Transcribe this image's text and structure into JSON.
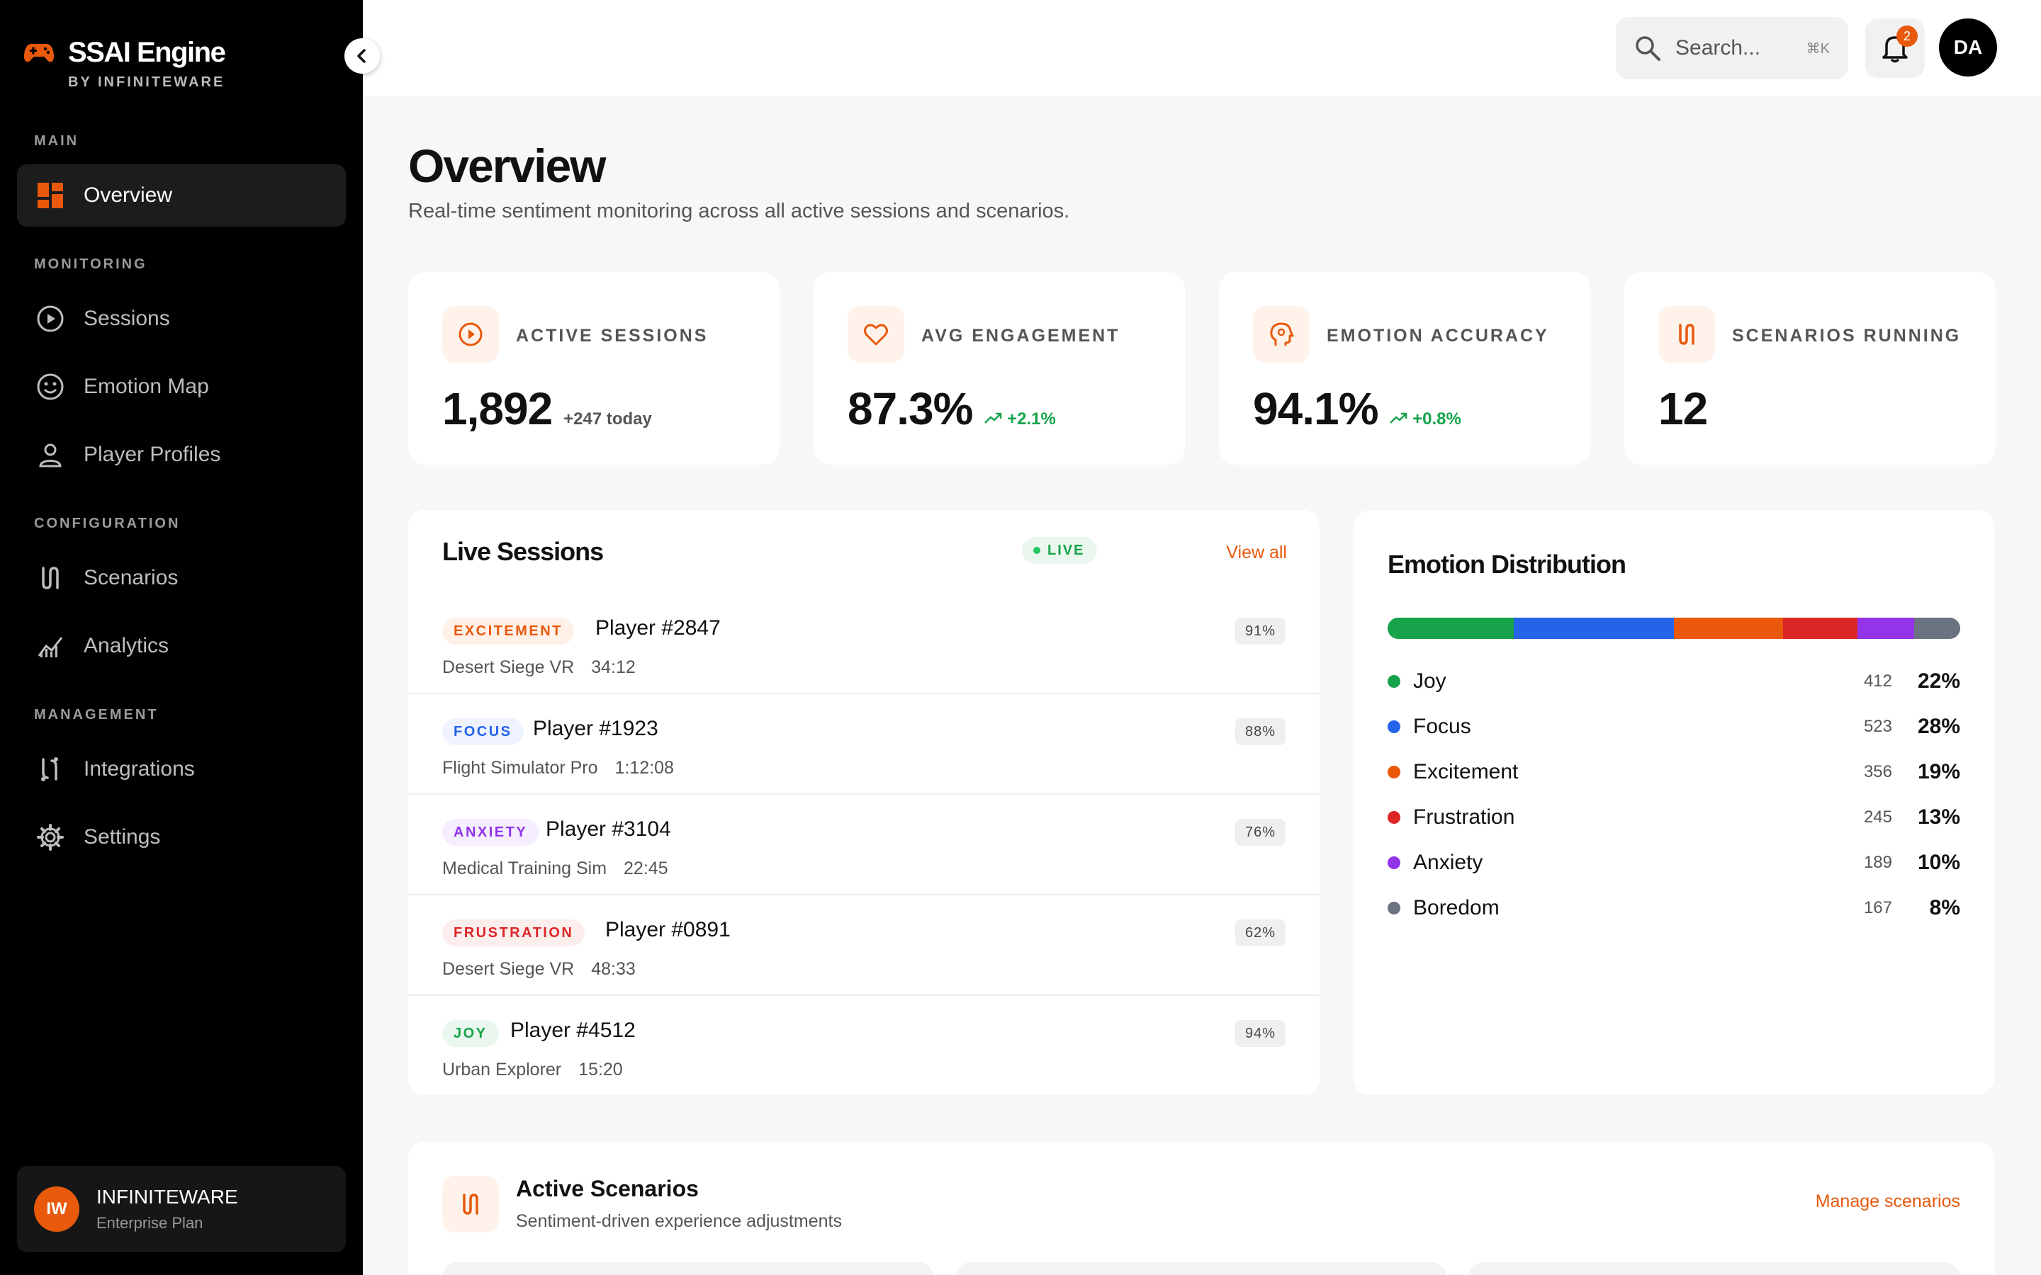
{
  "brand": {
    "name": "SSAI Engine",
    "sub": "BY INFINITEWARE"
  },
  "nav": {
    "sections": {
      "main": "MAIN",
      "monitoring": "MONITORING",
      "configuration": "CONFIGURATION",
      "management": "MANAGEMENT"
    },
    "items": {
      "overview": "Overview",
      "sessions": "Sessions",
      "emotion_map": "Emotion Map",
      "player_profiles": "Player Profiles",
      "scenarios": "Scenarios",
      "analytics": "Analytics",
      "integrations": "Integrations",
      "settings": "Settings"
    }
  },
  "org": {
    "initials": "IW",
    "name": "INFINITEWARE",
    "plan": "Enterprise Plan"
  },
  "topbar": {
    "search_placeholder": "Search...",
    "shortcut": "⌘K",
    "notifications": "2",
    "user_initials": "DA"
  },
  "page": {
    "title": "Overview",
    "subtitle": "Real-time sentiment monitoring across all active sessions and scenarios."
  },
  "stats": [
    {
      "label": "ACTIVE SESSIONS",
      "value": "1,892",
      "note": "+247 today"
    },
    {
      "label": "AVG ENGAGEMENT",
      "value": "87.3%",
      "delta": "+2.1%"
    },
    {
      "label": "EMOTION ACCURACY",
      "value": "94.1%",
      "delta": "+0.8%"
    },
    {
      "label": "SCENARIOS RUNNING",
      "value": "12"
    }
  ],
  "live_sessions": {
    "title": "Live Sessions",
    "badge": "LIVE",
    "view_all": "View all",
    "rows": [
      {
        "tag": "EXCITEMENT",
        "player": "Player #2847",
        "game": "Desert Siege VR",
        "time": "34:12",
        "pct": "91%"
      },
      {
        "tag": "FOCUS",
        "player": "Player #1923",
        "game": "Flight Simulator Pro",
        "time": "1:12:08",
        "pct": "88%"
      },
      {
        "tag": "ANXIETY",
        "player": "Player #3104",
        "game": "Medical Training Sim",
        "time": "22:45",
        "pct": "76%"
      },
      {
        "tag": "FRUSTRATION",
        "player": "Player #0891",
        "game": "Desert Siege VR",
        "time": "48:33",
        "pct": "62%"
      },
      {
        "tag": "JOY",
        "player": "Player #4512",
        "game": "Urban Explorer",
        "time": "15:20",
        "pct": "94%"
      }
    ]
  },
  "emotion_distribution": {
    "title": "Emotion Distribution",
    "items": [
      {
        "name": "Joy",
        "count": "412",
        "pct": "22%",
        "share": 22,
        "color": "#16a34a"
      },
      {
        "name": "Focus",
        "count": "523",
        "pct": "28%",
        "share": 28,
        "color": "#2563eb"
      },
      {
        "name": "Excitement",
        "count": "356",
        "pct": "19%",
        "share": 19,
        "color": "#ea580c"
      },
      {
        "name": "Frustration",
        "count": "245",
        "pct": "13%",
        "share": 13,
        "color": "#dc2626"
      },
      {
        "name": "Anxiety",
        "count": "189",
        "pct": "10%",
        "share": 10,
        "color": "#9333ea"
      },
      {
        "name": "Boredom",
        "count": "167",
        "pct": "8%",
        "share": 8,
        "color": "#6b7280"
      }
    ]
  },
  "active_scenarios": {
    "title": "Active Scenarios",
    "subtitle": "Sentiment-driven experience adjustments",
    "manage": "Manage scenarios"
  },
  "colors": {
    "accent": "#e8590c",
    "positive": "#15a34a",
    "tag_excitement": "#ea580c",
    "tag_focus": "#2563eb",
    "tag_anxiety": "#9333ea",
    "tag_frustration": "#dc2626",
    "tag_joy": "#16a34a"
  }
}
